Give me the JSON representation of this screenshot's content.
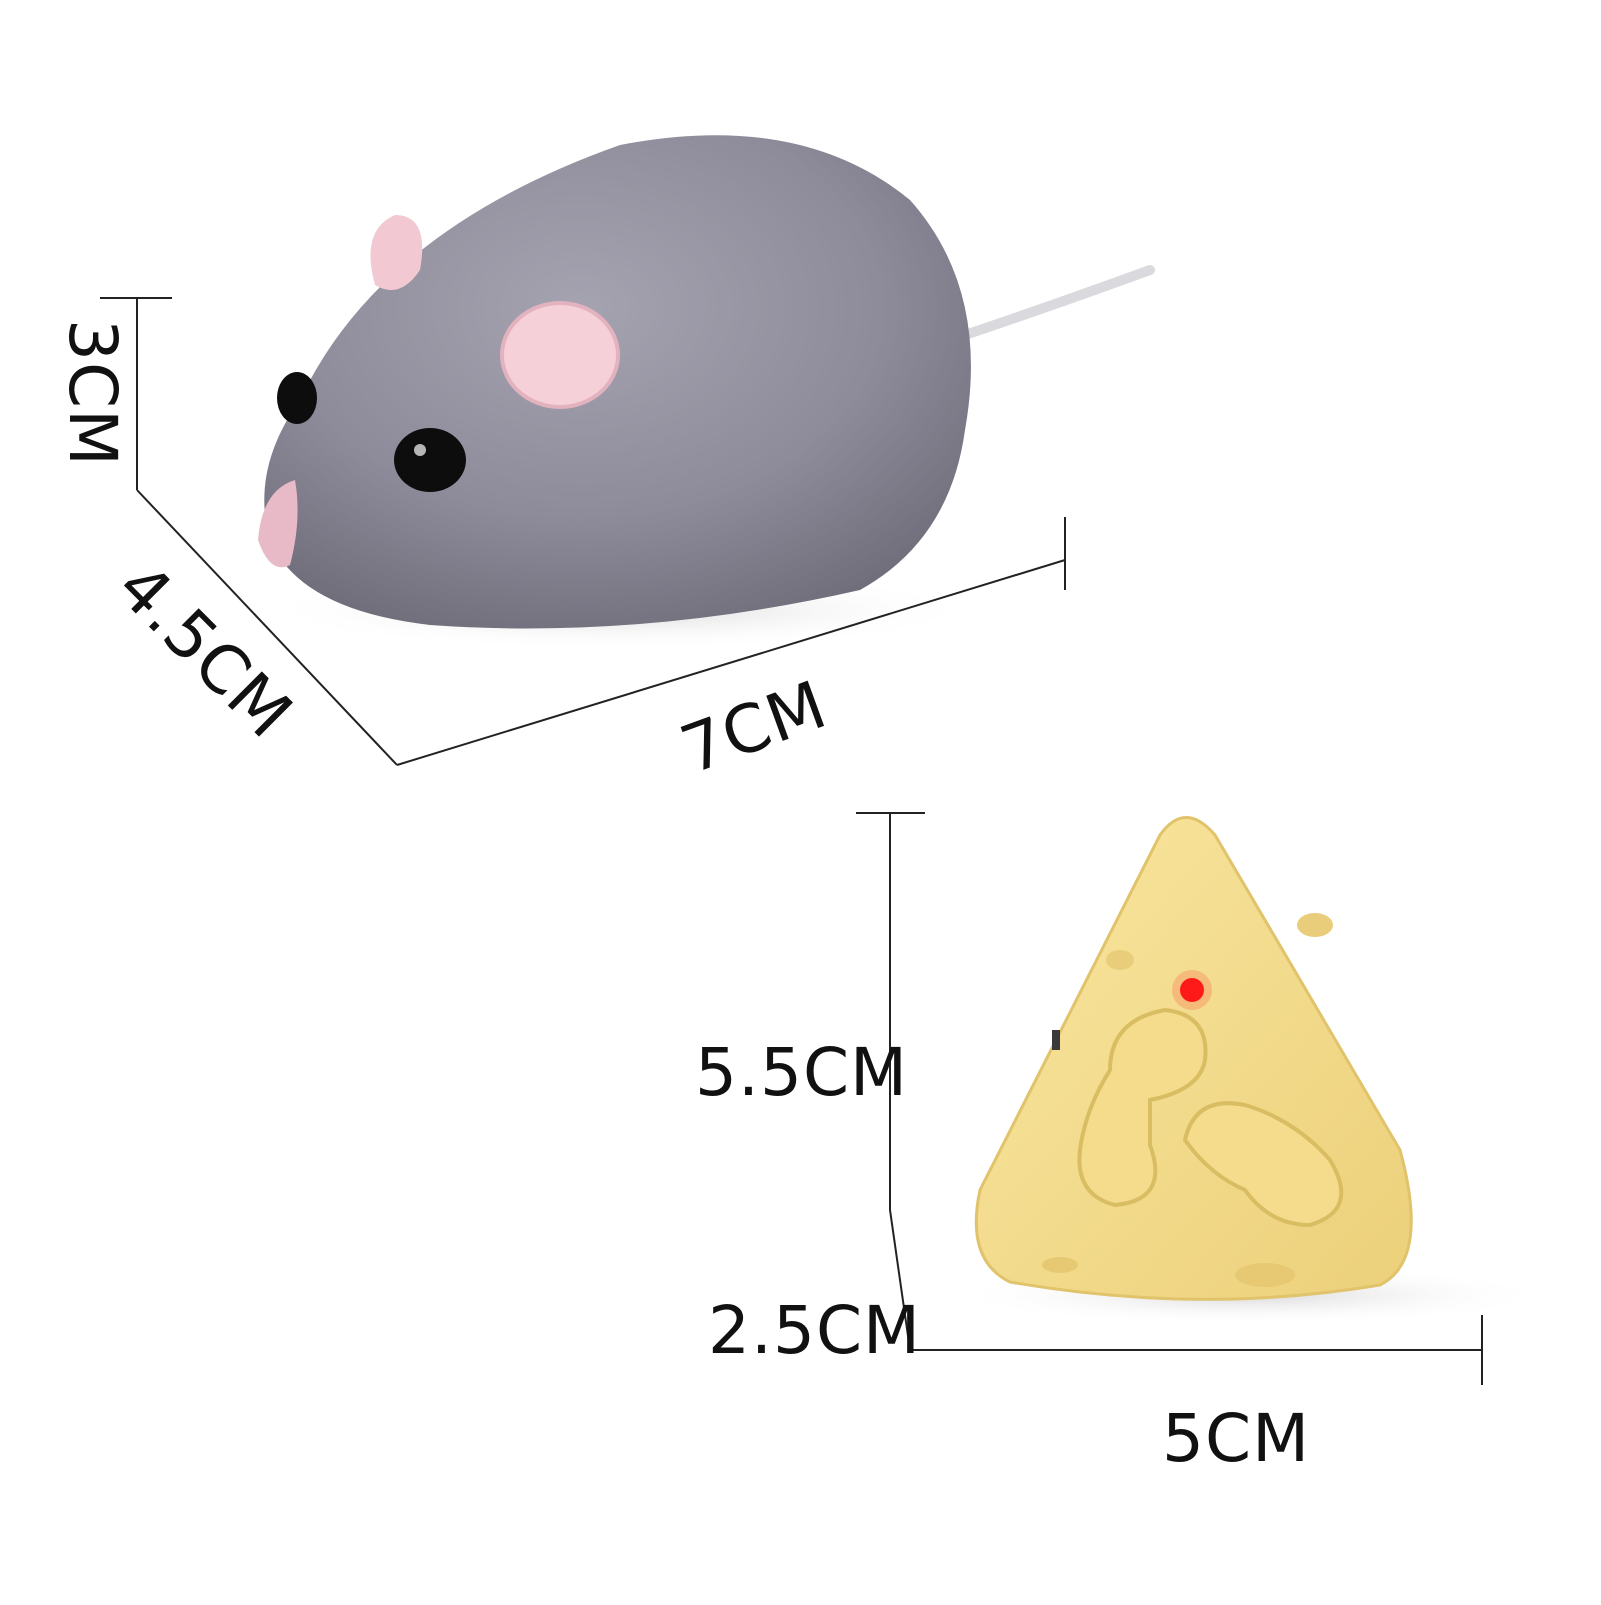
{
  "scene": {
    "description_subjects": [
      "mouse",
      "cheese-remote"
    ],
    "colors": {
      "background": "#ffffff",
      "mouse_fur": "#8e8c9a",
      "mouse_fur_dark": "#6f6d7a",
      "ear_pink": "#f2c9d2",
      "nose_pink": "#e8b9c6",
      "cheese": "#f6dc8a",
      "cheese_shade": "#e8c66a",
      "led_red": "#ff1a1a",
      "line": "#222222"
    }
  },
  "dimensions": {
    "mouse_height": "3CM",
    "mouse_width": "4.5CM",
    "mouse_length": "7CM",
    "remote_height": "5.5CM",
    "remote_depth": "2.5CM",
    "remote_width": "5CM"
  }
}
